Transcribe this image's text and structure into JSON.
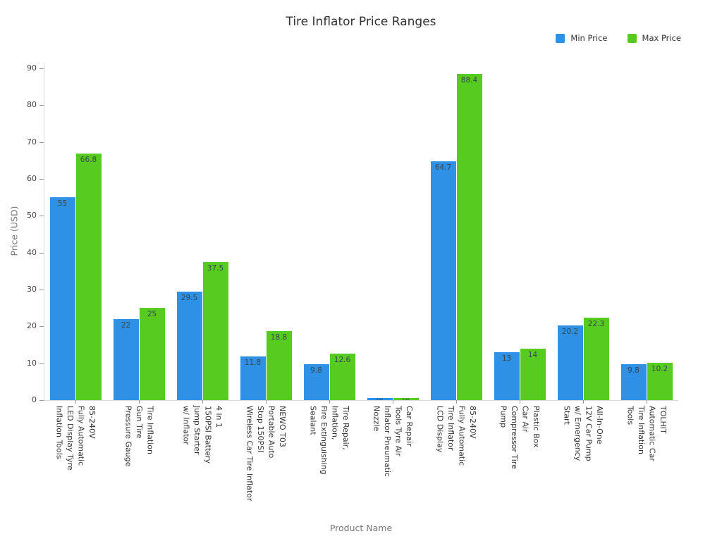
{
  "chart_data": {
    "type": "bar",
    "title": "Tire Inflator Price Ranges",
    "xlabel": "Product Name",
    "ylabel": "Price (USD)",
    "ylim": [
      0,
      90
    ],
    "yticks": [
      0,
      10,
      20,
      30,
      40,
      50,
      60,
      70,
      80,
      90
    ],
    "grid": false,
    "legend_position": "top-right",
    "background": "#ffffff",
    "value_label_color": "#39464e",
    "categories": [
      [
        "85-240V",
        "Fully Automatic",
        "LED Display Tyre",
        "Inflation Tools"
      ],
      [
        "Tire Inflation",
        "Gun Tire",
        "Pressure Gauge"
      ],
      [
        "4 in 1",
        "150PSI Battery",
        "Jump Starter",
        "w/ Inflator"
      ],
      [
        "NEWO T03",
        "Portable Auto",
        "Stop 150PSI",
        "Wireless Car Tire Inflator"
      ],
      [
        "Tire Repair,",
        "Inflation,",
        "Fire Extinguishing",
        "Sealant"
      ],
      [
        "Car Repair",
        "Tools Tyre Air",
        "Inflator Pneumatic",
        "Nozzle"
      ],
      [
        "85-240V",
        "Fully Automatic",
        "Tire Inflator",
        "LCD Display"
      ],
      [
        "Plastic Box",
        "Car Air",
        "Compressor Tire",
        "Pump"
      ],
      [
        "All-In-One",
        "12V Car Pump",
        "w/ Emergency",
        "Start"
      ],
      [
        "TOLHIT",
        "Automatic Car",
        "Tire Inflation",
        "Tools"
      ]
    ],
    "series": [
      {
        "name": "Min Price",
        "color": "#2E91E5",
        "values": [
          55,
          22,
          29.5,
          11.8,
          9.8,
          0.52,
          64.7,
          13,
          20.2,
          9.8
        ],
        "labels": [
          "55",
          "22",
          "29.5",
          "11.8",
          "9.8",
          "0.52",
          "64.7",
          "13",
          "20.2",
          "9.8"
        ]
      },
      {
        "name": "Max Price",
        "color": "#57CB20",
        "values": [
          66.8,
          25,
          37.5,
          18.8,
          12.6,
          0.58,
          88.4,
          14,
          22.3,
          10.2
        ],
        "labels": [
          "66.8",
          "25",
          "37.5",
          "18.8",
          "12.6",
          "0.58",
          "88.4",
          "14",
          "22.3",
          "10.2"
        ]
      }
    ]
  }
}
